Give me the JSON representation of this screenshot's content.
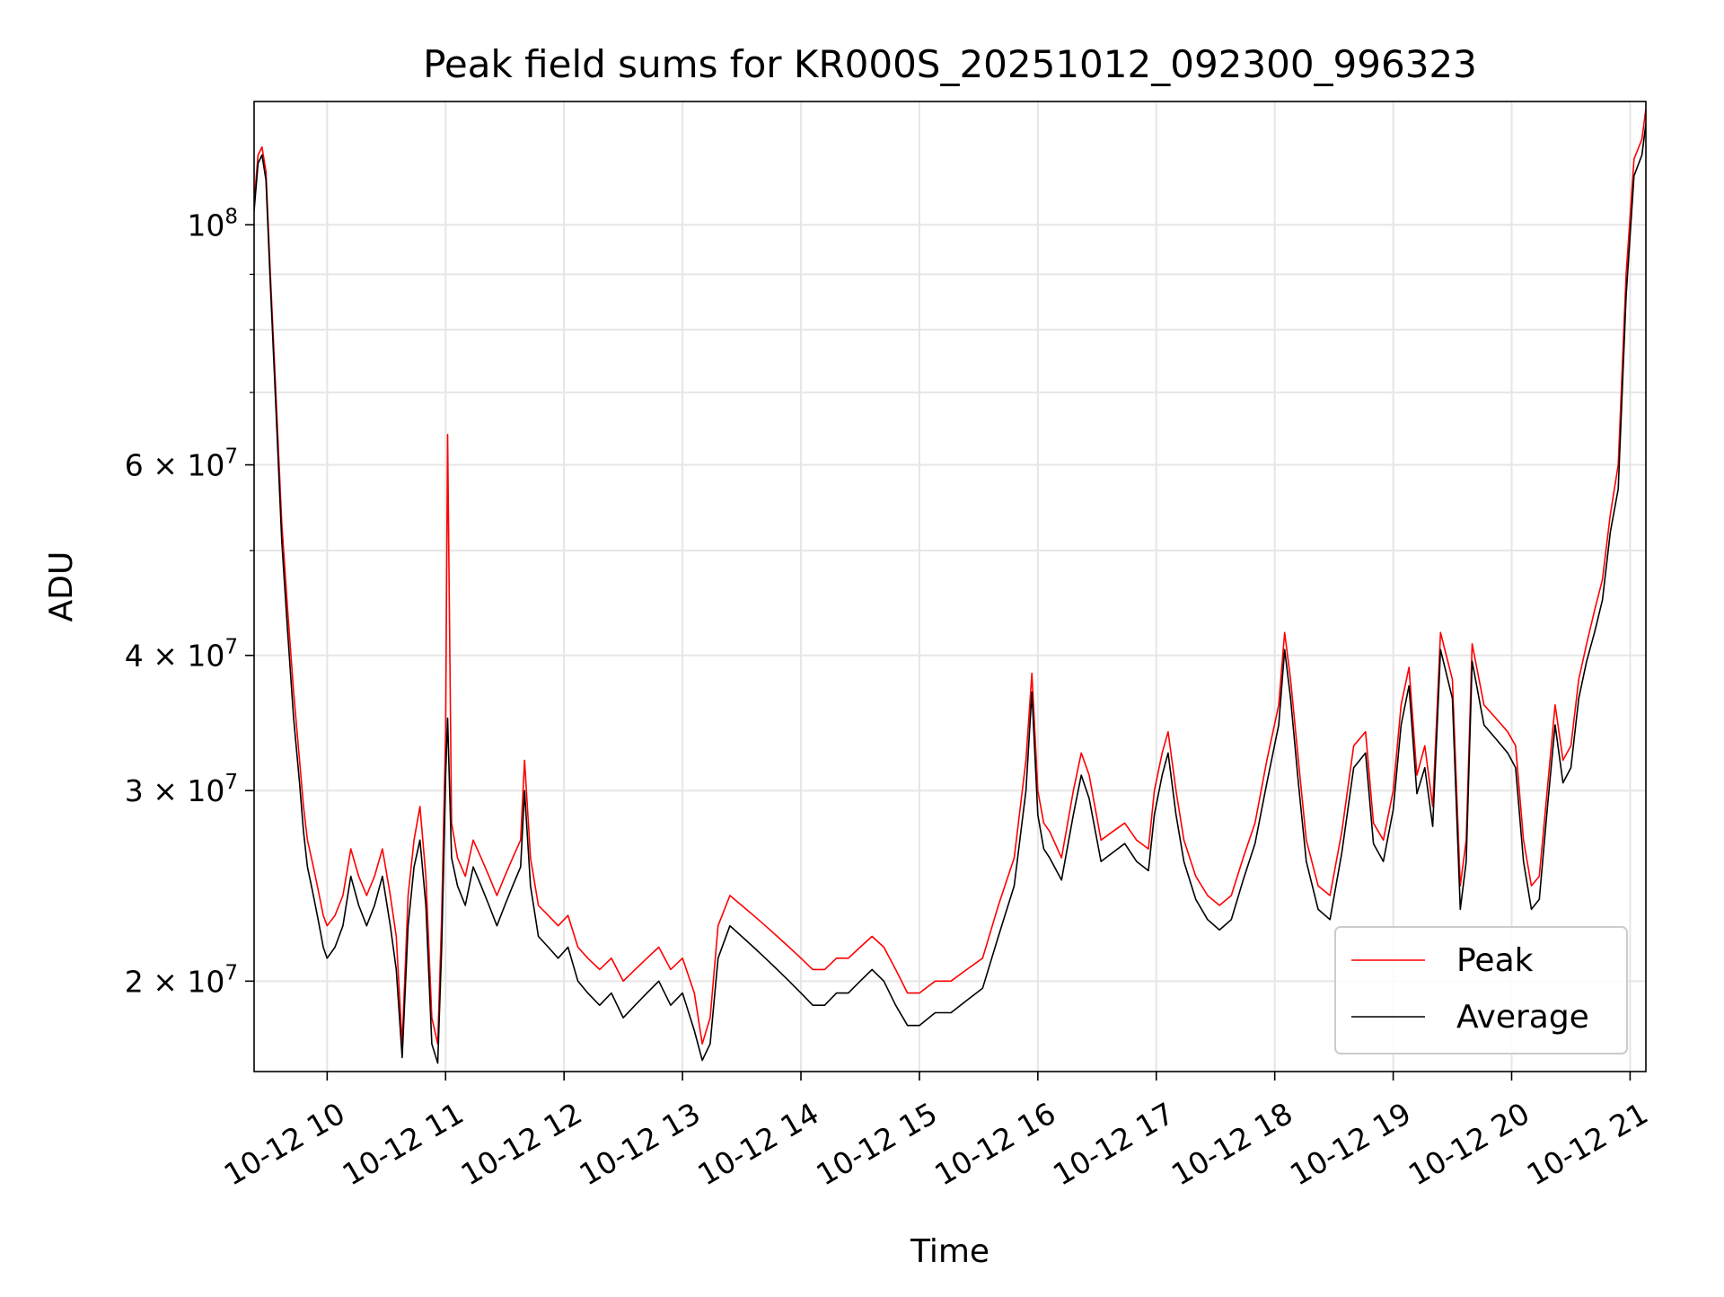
{
  "chart_data": {
    "type": "line",
    "title": "Peak field sums for KR000S_20251012_092300_996323",
    "xlabel": "Time",
    "ylabel": "ADU",
    "y_scale": "log",
    "ylim": [
      16500000,
      130000000
    ],
    "xlim": [
      "2025-10-12 09:23",
      "2025-10-12 21:08"
    ],
    "grid": true,
    "legend_position": "lower right",
    "x_ticks": [
      {
        "t": "2025-10-12 10:00",
        "label": "10-12 10"
      },
      {
        "t": "2025-10-12 11:00",
        "label": "10-12 11"
      },
      {
        "t": "2025-10-12 12:00",
        "label": "10-12 12"
      },
      {
        "t": "2025-10-12 13:00",
        "label": "10-12 13"
      },
      {
        "t": "2025-10-12 14:00",
        "label": "10-12 14"
      },
      {
        "t": "2025-10-12 15:00",
        "label": "10-12 15"
      },
      {
        "t": "2025-10-12 16:00",
        "label": "10-12 16"
      },
      {
        "t": "2025-10-12 17:00",
        "label": "10-12 17"
      },
      {
        "t": "2025-10-12 18:00",
        "label": "10-12 18"
      },
      {
        "t": "2025-10-12 19:00",
        "label": "10-12 19"
      },
      {
        "t": "2025-10-12 20:00",
        "label": "10-12 20"
      },
      {
        "t": "2025-10-12 21:00",
        "label": "10-12 21"
      }
    ],
    "y_ticks": [
      {
        "value": 20000000,
        "base": "2 × 10",
        "exp": "7"
      },
      {
        "value": 30000000,
        "base": "3 × 10",
        "exp": "7"
      },
      {
        "value": 40000000,
        "base": "4 × 10",
        "exp": "7"
      },
      {
        "value": 60000000,
        "base": "6 × 10",
        "exp": "7"
      },
      {
        "value": 100000000,
        "base": "10",
        "exp": "8"
      }
    ],
    "y_minor_ticks": [
      50000000,
      70000000,
      80000000,
      90000000
    ],
    "series": [
      {
        "name": "Peak",
        "color": "#ff0000",
        "x": [
          "2025-10-12 09:23",
          "2025-10-12 09:25",
          "2025-10-12 09:27",
          "2025-10-12 09:29",
          "2025-10-12 09:31",
          "2025-10-12 09:34",
          "2025-10-12 09:37",
          "2025-10-12 09:40",
          "2025-10-12 09:43",
          "2025-10-12 09:46",
          "2025-10-12 09:48",
          "2025-10-12 09:50",
          "2025-10-12 09:52",
          "2025-10-12 09:54",
          "2025-10-12 09:56",
          "2025-10-12 09:58",
          "2025-10-12 10:00",
          "2025-10-12 10:04",
          "2025-10-12 10:08",
          "2025-10-12 10:12",
          "2025-10-12 10:16",
          "2025-10-12 10:20",
          "2025-10-12 10:24",
          "2025-10-12 10:28",
          "2025-10-12 10:32",
          "2025-10-12 10:35",
          "2025-10-12 10:38",
          "2025-10-12 10:41",
          "2025-10-12 10:44",
          "2025-10-12 10:47",
          "2025-10-12 10:50",
          "2025-10-12 10:53",
          "2025-10-12 10:56",
          "2025-10-12 10:58",
          "2025-10-12 11:00",
          "2025-10-12 11:01",
          "2025-10-12 11:03",
          "2025-10-12 11:06",
          "2025-10-12 11:10",
          "2025-10-12 11:14",
          "2025-10-12 11:18",
          "2025-10-12 11:22",
          "2025-10-12 11:26",
          "2025-10-12 11:30",
          "2025-10-12 11:34",
          "2025-10-12 11:38",
          "2025-10-12 11:40",
          "2025-10-12 11:43",
          "2025-10-12 11:47",
          "2025-10-12 11:52",
          "2025-10-12 11:57",
          "2025-10-12 12:02",
          "2025-10-12 12:07",
          "2025-10-12 12:12",
          "2025-10-12 12:18",
          "2025-10-12 12:24",
          "2025-10-12 12:30",
          "2025-10-12 12:36",
          "2025-10-12 12:42",
          "2025-10-12 12:48",
          "2025-10-12 12:54",
          "2025-10-12 13:00",
          "2025-10-12 13:06",
          "2025-10-12 13:10",
          "2025-10-12 13:14",
          "2025-10-12 13:18",
          "2025-10-12 13:24",
          "2025-10-12 13:30",
          "2025-10-12 13:36",
          "2025-10-12 13:42",
          "2025-10-12 13:48",
          "2025-10-12 13:54",
          "2025-10-12 14:00",
          "2025-10-12 14:06",
          "2025-10-12 14:12",
          "2025-10-12 14:18",
          "2025-10-12 14:24",
          "2025-10-12 14:30",
          "2025-10-12 14:36",
          "2025-10-12 14:42",
          "2025-10-12 14:48",
          "2025-10-12 14:54",
          "2025-10-12 15:00",
          "2025-10-12 15:08",
          "2025-10-12 15:16",
          "2025-10-12 15:24",
          "2025-10-12 15:32",
          "2025-10-12 15:40",
          "2025-10-12 15:48",
          "2025-10-12 15:54",
          "2025-10-12 15:57",
          "2025-10-12 16:00",
          "2025-10-12 16:03",
          "2025-10-12 16:06",
          "2025-10-12 16:12",
          "2025-10-12 16:18",
          "2025-10-12 16:22",
          "2025-10-12 16:26",
          "2025-10-12 16:32",
          "2025-10-12 16:38",
          "2025-10-12 16:44",
          "2025-10-12 16:50",
          "2025-10-12 16:56",
          "2025-10-12 16:59",
          "2025-10-12 17:03",
          "2025-10-12 17:06",
          "2025-10-12 17:10",
          "2025-10-12 17:14",
          "2025-10-12 17:20",
          "2025-10-12 17:26",
          "2025-10-12 17:32",
          "2025-10-12 17:38",
          "2025-10-12 17:44",
          "2025-10-12 17:50",
          "2025-10-12 17:56",
          "2025-10-12 18:02",
          "2025-10-12 18:05",
          "2025-10-12 18:08",
          "2025-10-12 18:12",
          "2025-10-12 18:16",
          "2025-10-12 18:22",
          "2025-10-12 18:28",
          "2025-10-12 18:34",
          "2025-10-12 18:40",
          "2025-10-12 18:46",
          "2025-10-12 18:50",
          "2025-10-12 18:55",
          "2025-10-12 19:00",
          "2025-10-12 19:04",
          "2025-10-12 19:08",
          "2025-10-12 19:12",
          "2025-10-12 19:16",
          "2025-10-12 19:20",
          "2025-10-12 19:24",
          "2025-10-12 19:30",
          "2025-10-12 19:34",
          "2025-10-12 19:37",
          "2025-10-12 19:40",
          "2025-10-12 19:46",
          "2025-10-12 19:52",
          "2025-10-12 19:58",
          "2025-10-12 20:02",
          "2025-10-12 20:06",
          "2025-10-12 20:10",
          "2025-10-12 20:14",
          "2025-10-12 20:18",
          "2025-10-12 20:22",
          "2025-10-12 20:26",
          "2025-10-12 20:30",
          "2025-10-12 20:34",
          "2025-10-12 20:38",
          "2025-10-12 20:42",
          "2025-10-12 20:46",
          "2025-10-12 20:50",
          "2025-10-12 20:54",
          "2025-10-12 20:58",
          "2025-10-12 21:02",
          "2025-10-12 21:06",
          "2025-10-12 21:08"
        ],
        "y": [
          105000000,
          116000000,
          118000000,
          112000000,
          92000000,
          70000000,
          53000000,
          44000000,
          37000000,
          32000000,
          29000000,
          27000000,
          26000000,
          25000000,
          24000000,
          23000000,
          22500000,
          23000000,
          24000000,
          26500000,
          25000000,
          24000000,
          25000000,
          26500000,
          24000000,
          22000000,
          17500000,
          24000000,
          27000000,
          29000000,
          25000000,
          18500000,
          17500000,
          23000000,
          34000000,
          64000000,
          28000000,
          26000000,
          25000000,
          27000000,
          26000000,
          25000000,
          24000000,
          25000000,
          26000000,
          27000000,
          32000000,
          26000000,
          23500000,
          23000000,
          22500000,
          23000000,
          21500000,
          21000000,
          20500000,
          21000000,
          20000000,
          20500000,
          21000000,
          21500000,
          20500000,
          21000000,
          19500000,
          17500000,
          18500000,
          22500000,
          24000000,
          23500000,
          23000000,
          22500000,
          22000000,
          21500000,
          21000000,
          20500000,
          20500000,
          21000000,
          21000000,
          21500000,
          22000000,
          21500000,
          20500000,
          19500000,
          19500000,
          20000000,
          20000000,
          20500000,
          21000000,
          23500000,
          26000000,
          32000000,
          38500000,
          30000000,
          28000000,
          27500000,
          26000000,
          30000000,
          32500000,
          31000000,
          27000000,
          27500000,
          28000000,
          27000000,
          26500000,
          30000000,
          32500000,
          34000000,
          30000000,
          27000000,
          25000000,
          24000000,
          23500000,
          24000000,
          26000000,
          28000000,
          32000000,
          36000000,
          42000000,
          38000000,
          32000000,
          27000000,
          24500000,
          24000000,
          27500000,
          33000000,
          34000000,
          28000000,
          27000000,
          30000000,
          36000000,
          39000000,
          31000000,
          33000000,
          29000000,
          42000000,
          38000000,
          24500000,
          27000000,
          41000000,
          36000000,
          35000000,
          34000000,
          33000000,
          27000000,
          24500000,
          25000000,
          30000000,
          36000000,
          32000000,
          33000000,
          38000000,
          41000000,
          44000000,
          47000000,
          54000000,
          60000000,
          90000000,
          115000000,
          120000000,
          128000000
        ]
      },
      {
        "name": "Average",
        "color": "#000000",
        "x": [
          "2025-10-12 09:23",
          "2025-10-12 09:25",
          "2025-10-12 09:27",
          "2025-10-12 09:29",
          "2025-10-12 09:31",
          "2025-10-12 09:34",
          "2025-10-12 09:37",
          "2025-10-12 09:40",
          "2025-10-12 09:43",
          "2025-10-12 09:46",
          "2025-10-12 09:48",
          "2025-10-12 09:50",
          "2025-10-12 09:52",
          "2025-10-12 09:54",
          "2025-10-12 09:56",
          "2025-10-12 09:58",
          "2025-10-12 10:00",
          "2025-10-12 10:04",
          "2025-10-12 10:08",
          "2025-10-12 10:12",
          "2025-10-12 10:16",
          "2025-10-12 10:20",
          "2025-10-12 10:24",
          "2025-10-12 10:28",
          "2025-10-12 10:32",
          "2025-10-12 10:35",
          "2025-10-12 10:38",
          "2025-10-12 10:41",
          "2025-10-12 10:44",
          "2025-10-12 10:47",
          "2025-10-12 10:50",
          "2025-10-12 10:53",
          "2025-10-12 10:56",
          "2025-10-12 10:58",
          "2025-10-12 11:00",
          "2025-10-12 11:01",
          "2025-10-12 11:03",
          "2025-10-12 11:06",
          "2025-10-12 11:10",
          "2025-10-12 11:14",
          "2025-10-12 11:18",
          "2025-10-12 11:22",
          "2025-10-12 11:26",
          "2025-10-12 11:30",
          "2025-10-12 11:34",
          "2025-10-12 11:38",
          "2025-10-12 11:40",
          "2025-10-12 11:43",
          "2025-10-12 11:47",
          "2025-10-12 11:52",
          "2025-10-12 11:57",
          "2025-10-12 12:02",
          "2025-10-12 12:07",
          "2025-10-12 12:12",
          "2025-10-12 12:18",
          "2025-10-12 12:24",
          "2025-10-12 12:30",
          "2025-10-12 12:36",
          "2025-10-12 12:42",
          "2025-10-12 12:48",
          "2025-10-12 12:54",
          "2025-10-12 13:00",
          "2025-10-12 13:06",
          "2025-10-12 13:10",
          "2025-10-12 13:14",
          "2025-10-12 13:18",
          "2025-10-12 13:24",
          "2025-10-12 13:30",
          "2025-10-12 13:36",
          "2025-10-12 13:42",
          "2025-10-12 13:48",
          "2025-10-12 13:54",
          "2025-10-12 14:00",
          "2025-10-12 14:06",
          "2025-10-12 14:12",
          "2025-10-12 14:18",
          "2025-10-12 14:24",
          "2025-10-12 14:30",
          "2025-10-12 14:36",
          "2025-10-12 14:42",
          "2025-10-12 14:48",
          "2025-10-12 14:54",
          "2025-10-12 15:00",
          "2025-10-12 15:08",
          "2025-10-12 15:16",
          "2025-10-12 15:24",
          "2025-10-12 15:32",
          "2025-10-12 15:40",
          "2025-10-12 15:48",
          "2025-10-12 15:54",
          "2025-10-12 15:57",
          "2025-10-12 16:00",
          "2025-10-12 16:03",
          "2025-10-12 16:06",
          "2025-10-12 16:12",
          "2025-10-12 16:18",
          "2025-10-12 16:22",
          "2025-10-12 16:26",
          "2025-10-12 16:32",
          "2025-10-12 16:38",
          "2025-10-12 16:44",
          "2025-10-12 16:50",
          "2025-10-12 16:56",
          "2025-10-12 16:59",
          "2025-10-12 17:03",
          "2025-10-12 17:06",
          "2025-10-12 17:10",
          "2025-10-12 17:14",
          "2025-10-12 17:20",
          "2025-10-12 17:26",
          "2025-10-12 17:32",
          "2025-10-12 17:38",
          "2025-10-12 17:44",
          "2025-10-12 17:50",
          "2025-10-12 17:56",
          "2025-10-12 18:02",
          "2025-10-12 18:05",
          "2025-10-12 18:08",
          "2025-10-12 18:12",
          "2025-10-12 18:16",
          "2025-10-12 18:22",
          "2025-10-12 18:28",
          "2025-10-12 18:34",
          "2025-10-12 18:40",
          "2025-10-12 18:46",
          "2025-10-12 18:50",
          "2025-10-12 18:55",
          "2025-10-12 19:00",
          "2025-10-12 19:04",
          "2025-10-12 19:08",
          "2025-10-12 19:12",
          "2025-10-12 19:16",
          "2025-10-12 19:20",
          "2025-10-12 19:24",
          "2025-10-12 19:30",
          "2025-10-12 19:34",
          "2025-10-12 19:37",
          "2025-10-12 19:40",
          "2025-10-12 19:46",
          "2025-10-12 19:52",
          "2025-10-12 19:58",
          "2025-10-12 20:02",
          "2025-10-12 20:06",
          "2025-10-12 20:10",
          "2025-10-12 20:14",
          "2025-10-12 20:18",
          "2025-10-12 20:22",
          "2025-10-12 20:26",
          "2025-10-12 20:30",
          "2025-10-12 20:34",
          "2025-10-12 20:38",
          "2025-10-12 20:42",
          "2025-10-12 20:46",
          "2025-10-12 20:50",
          "2025-10-12 20:54",
          "2025-10-12 20:58",
          "2025-10-12 21:02",
          "2025-10-12 21:06",
          "2025-10-12 21:08"
        ],
        "y": [
          103000000,
          114000000,
          116000000,
          110000000,
          90000000,
          68000000,
          51000000,
          42000000,
          35000000,
          30500000,
          27500000,
          25500000,
          24500000,
          23500000,
          22500000,
          21500000,
          21000000,
          21500000,
          22500000,
          25000000,
          23500000,
          22500000,
          23500000,
          25000000,
          22500000,
          20500000,
          17000000,
          22500000,
          25500000,
          27000000,
          23500000,
          17500000,
          16800000,
          21500000,
          31000000,
          35000000,
          26000000,
          24500000,
          23500000,
          25500000,
          24500000,
          23500000,
          22500000,
          23500000,
          24500000,
          25500000,
          30000000,
          24500000,
          22000000,
          21500000,
          21000000,
          21500000,
          20000000,
          19500000,
          19000000,
          19500000,
          18500000,
          19000000,
          19500000,
          20000000,
          19000000,
          19500000,
          18000000,
          16900000,
          17500000,
          21000000,
          22500000,
          22000000,
          21500000,
          21000000,
          20500000,
          20000000,
          19500000,
          19000000,
          19000000,
          19500000,
          19500000,
          20000000,
          20500000,
          20000000,
          19000000,
          18200000,
          18200000,
          18700000,
          18700000,
          19200000,
          19700000,
          22000000,
          24500000,
          30000000,
          37000000,
          28500000,
          26500000,
          26000000,
          24800000,
          28500000,
          31000000,
          29500000,
          25800000,
          26300000,
          26800000,
          25800000,
          25300000,
          28500000,
          31000000,
          32500000,
          28500000,
          25800000,
          23800000,
          22800000,
          22300000,
          22800000,
          24800000,
          26800000,
          30500000,
          34500000,
          40500000,
          36500000,
          30500000,
          25800000,
          23300000,
          22800000,
          26300000,
          31500000,
          32500000,
          26800000,
          25800000,
          28800000,
          34500000,
          37500000,
          29800000,
          31500000,
          27800000,
          40500000,
          36500000,
          23300000,
          25800000,
          39500000,
          34500000,
          33500000,
          32500000,
          31500000,
          25800000,
          23300000,
          23800000,
          28800000,
          34500000,
          30500000,
          31500000,
          36500000,
          39500000,
          42000000,
          45000000,
          52000000,
          57000000,
          86000000,
          111000000,
          116000000,
          124000000
        ]
      }
    ]
  }
}
